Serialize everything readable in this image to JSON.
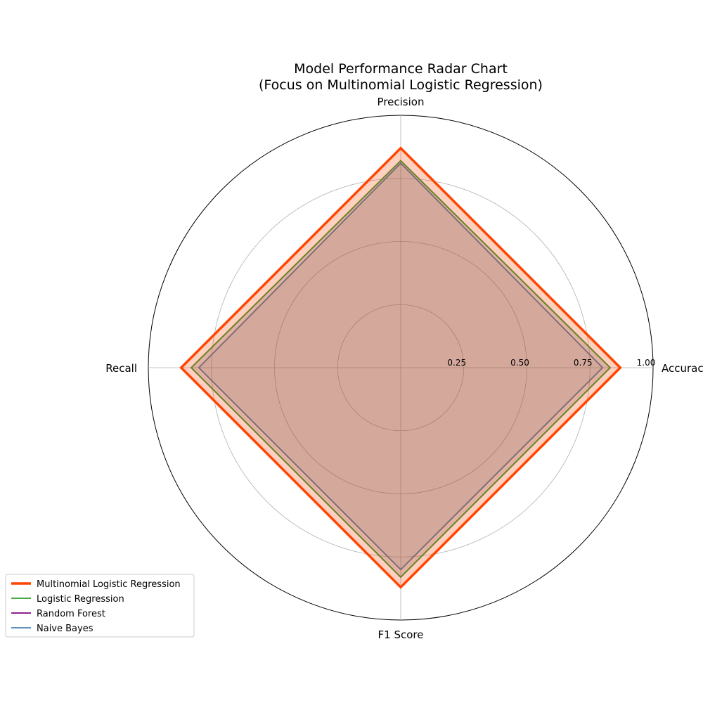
{
  "chart_data": {
    "type": "radar",
    "title": "Model Performance Radar Chart",
    "subtitle": "(Focus on Multinomial Logistic Regression)",
    "axes": [
      "Accuracy",
      "Precision",
      "Recall",
      "F1 Score"
    ],
    "rlim": [
      0,
      1
    ],
    "radial_ticks": [
      {
        "value": 0.25,
        "label": "0.25"
      },
      {
        "value": 0.5,
        "label": "0.50"
      },
      {
        "value": 0.75,
        "label": "0.75"
      },
      {
        "value": 1.0,
        "label": "1.00"
      }
    ],
    "grid": true,
    "legend_position": "lower-left",
    "series": [
      {
        "name": "Multinomial Logistic Regression",
        "color": "#ff4500",
        "values": [
          0.87,
          0.87,
          0.87,
          0.87
        ],
        "emphasis": true
      },
      {
        "name": "Logistic Regression",
        "color": "#2ca02c",
        "values": [
          0.83,
          0.82,
          0.83,
          0.83
        ]
      },
      {
        "name": "Random Forest",
        "color": "#800080",
        "values": [
          0.83,
          0.82,
          0.83,
          0.83
        ]
      },
      {
        "name": "Naive Bayes",
        "color": "#4682b4",
        "values": [
          0.8,
          0.81,
          0.8,
          0.8
        ]
      }
    ]
  }
}
